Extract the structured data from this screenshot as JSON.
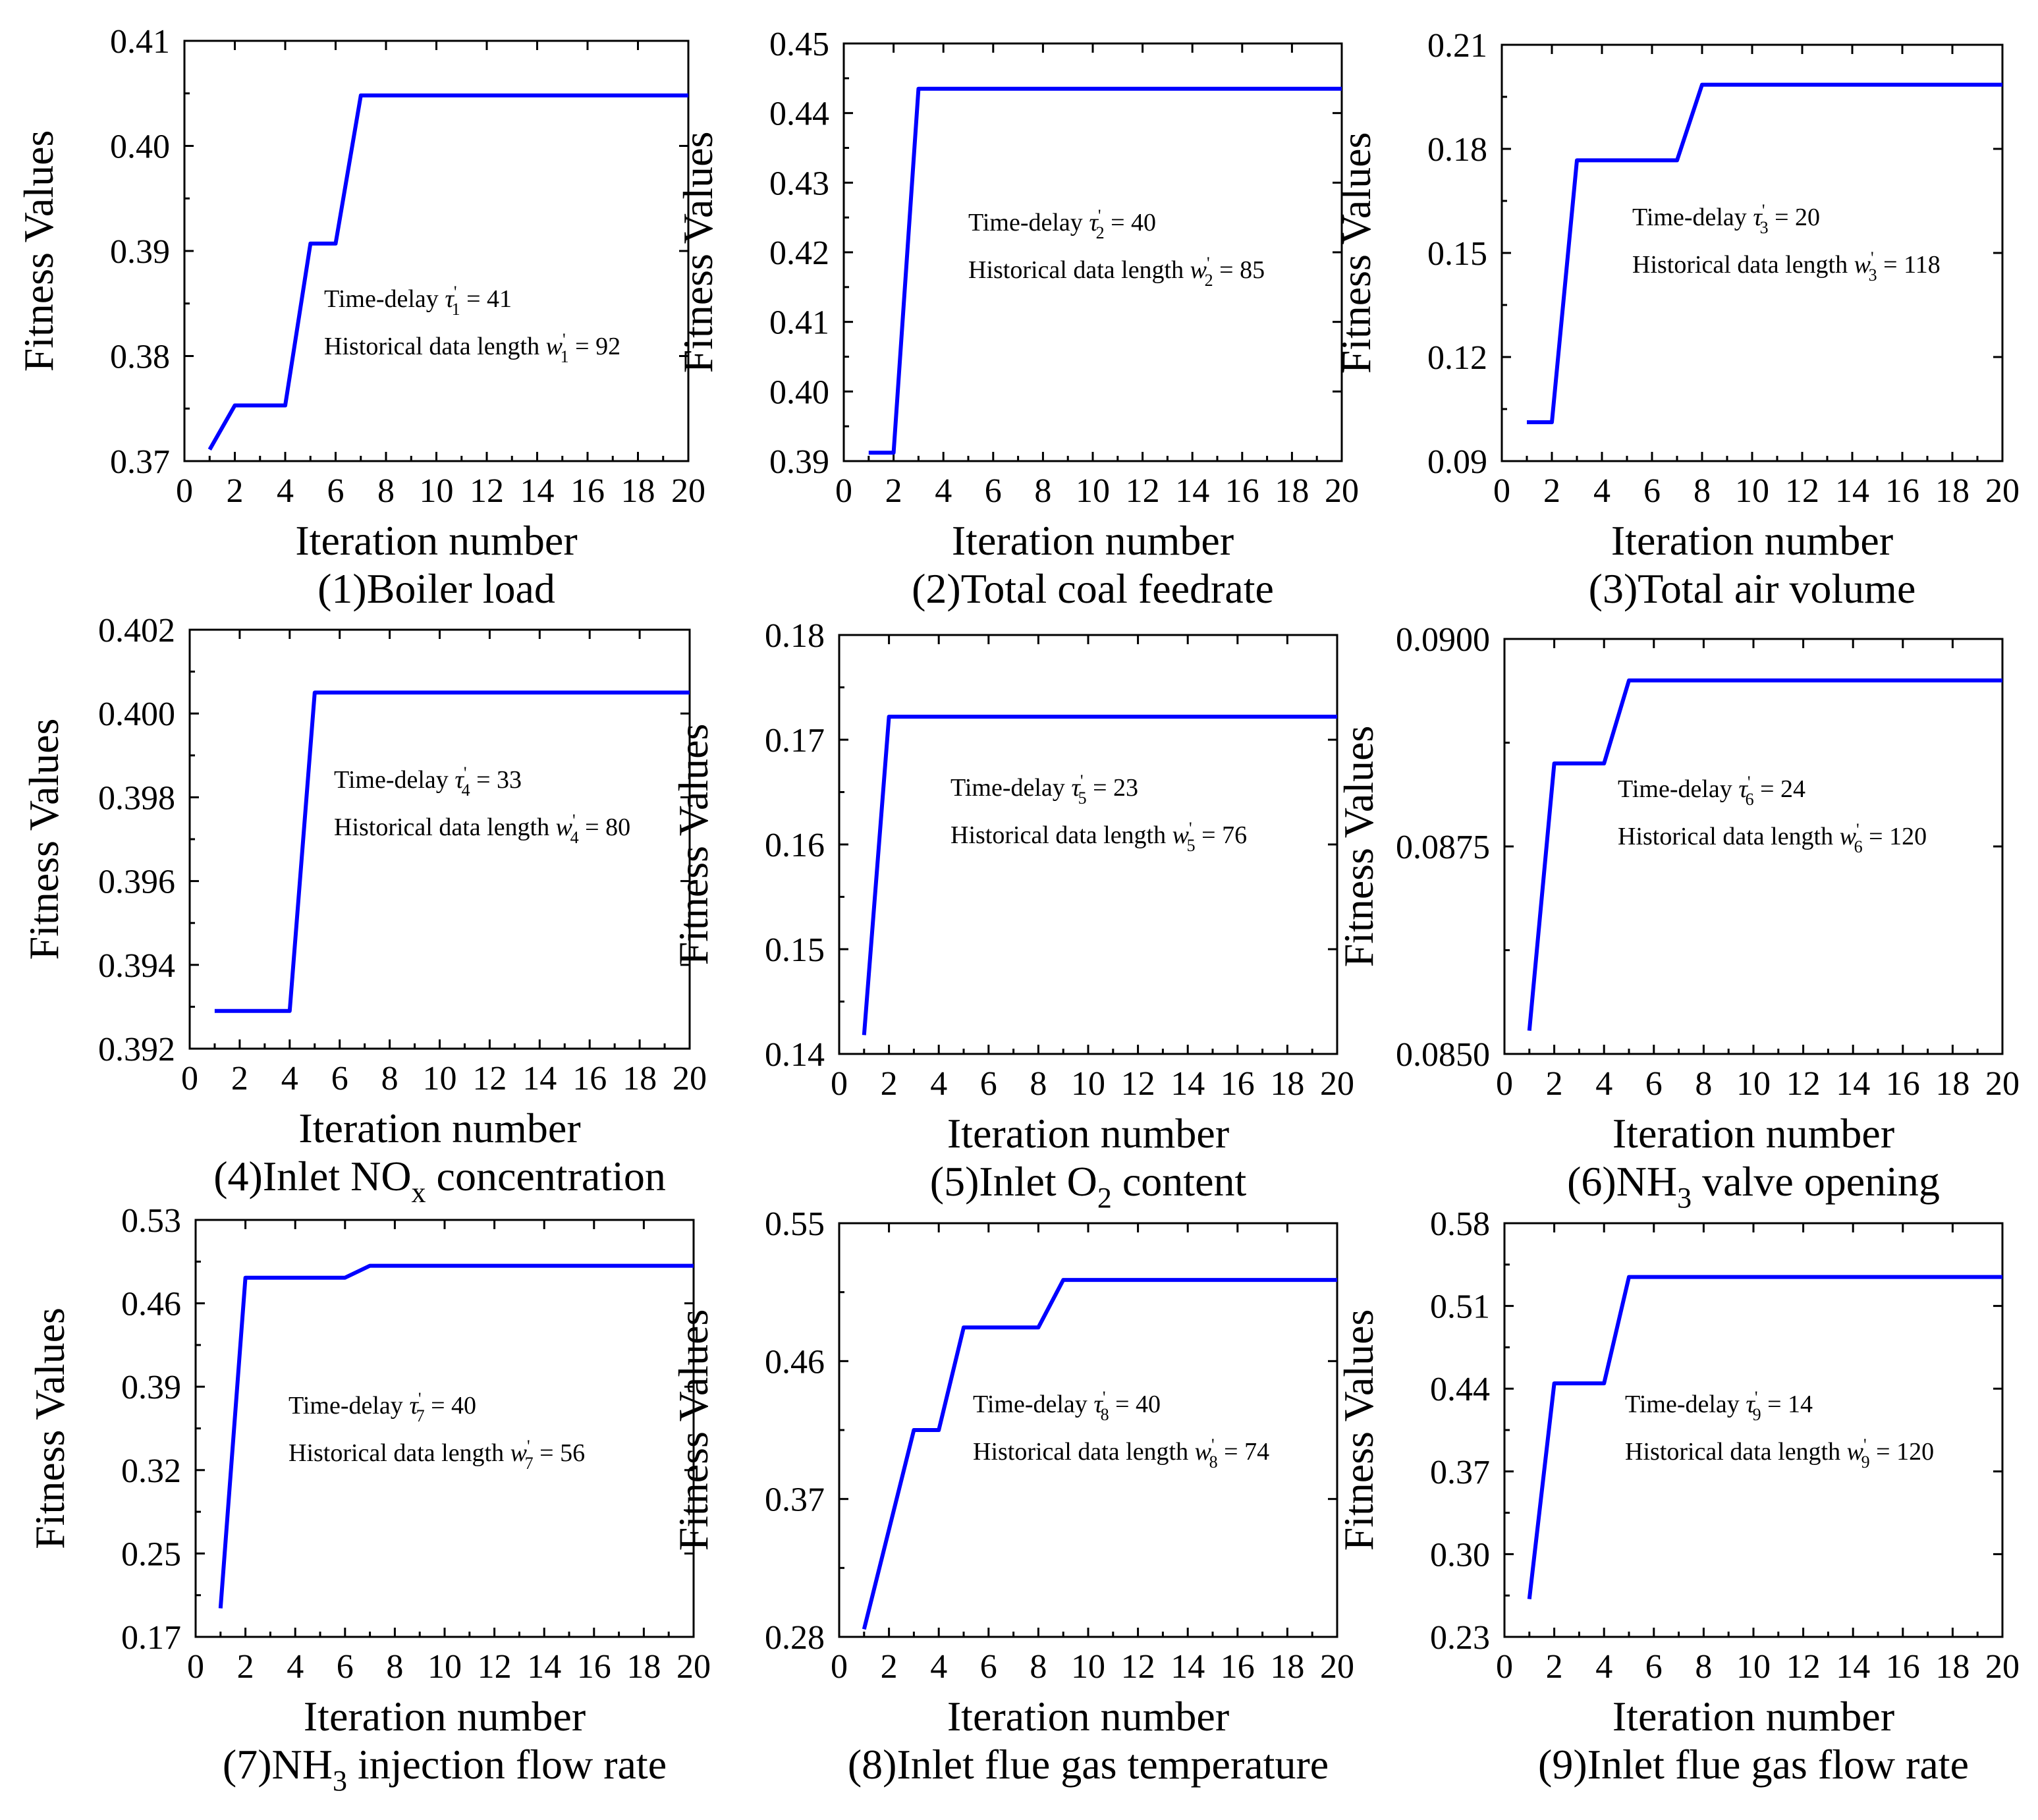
{
  "chart_data": [
    {
      "type": "line",
      "caption": {
        "pre": "(1)Boiler load",
        "sub": "",
        "post": ""
      },
      "xlabel": "Iteration number",
      "ylabel": "Fitness Values",
      "xlim": [
        0,
        20
      ],
      "xticks": [
        "0",
        "2",
        "4",
        "6",
        "8",
        "10",
        "12",
        "14",
        "16",
        "18",
        "20"
      ],
      "ylim": [
        0.37,
        0.41
      ],
      "yticks": [
        "0.37",
        "0.38",
        "0.39",
        "0.40",
        "0.41"
      ],
      "series": [
        {
          "name": "fitness",
          "color": "#0000ff",
          "x": [
            1,
            2,
            3,
            4,
            5,
            6,
            7,
            8,
            20
          ],
          "y": [
            0.3711,
            0.3753,
            0.3753,
            0.3753,
            0.3907,
            0.3907,
            0.4048,
            0.4048,
            0.4048
          ]
        }
      ],
      "annotation": {
        "delay_prefix": "Time-delay ",
        "delay_sym": "τ",
        "delay_sub": "1",
        "delay_val": " = 41",
        "length_prefix": "Historical data length ",
        "length_sym": "w",
        "length_sub": "1",
        "length_val": " = 92"
      }
    },
    {
      "type": "line",
      "caption": {
        "pre": "(2)Total coal feedrate",
        "sub": "",
        "post": ""
      },
      "xlabel": "Iteration number",
      "ylabel": "Fitness Values",
      "xlim": [
        0,
        20
      ],
      "xticks": [
        "0",
        "2",
        "4",
        "6",
        "8",
        "10",
        "12",
        "14",
        "16",
        "18",
        "20"
      ],
      "ylim": [
        0.39,
        0.45
      ],
      "yticks": [
        "0.39",
        "0.40",
        "0.41",
        "0.42",
        "0.43",
        "0.44",
        "0.45"
      ],
      "series": [
        {
          "name": "fitness",
          "color": "#0000ff",
          "x": [
            1,
            2,
            3,
            20
          ],
          "y": [
            0.3912,
            0.3912,
            0.4435,
            0.4435
          ]
        }
      ],
      "annotation": {
        "delay_prefix": "Time-delay ",
        "delay_sym": "τ",
        "delay_sub": "2",
        "delay_val": " = 40",
        "length_prefix": "Historical data length ",
        "length_sym": "w",
        "length_sub": "2",
        "length_val": " = 85"
      }
    },
    {
      "type": "line",
      "caption": {
        "pre": "(3)Total air volume",
        "sub": "",
        "post": ""
      },
      "xlabel": "Iteration number",
      "ylabel": "Fitness Values",
      "xlim": [
        0,
        20
      ],
      "xticks": [
        "0",
        "2",
        "4",
        "6",
        "8",
        "10",
        "12",
        "14",
        "16",
        "18",
        "20"
      ],
      "ylim": [
        0.09,
        0.21
      ],
      "yticks": [
        "0.09",
        "0.12",
        "0.15",
        "0.18",
        "0.21"
      ],
      "series": [
        {
          "name": "fitness",
          "color": "#0000ff",
          "x": [
            1,
            2,
            3,
            7,
            8,
            20
          ],
          "y": [
            0.1012,
            0.1012,
            0.1767,
            0.1767,
            0.1985,
            0.1985
          ]
        }
      ],
      "annotation": {
        "delay_prefix": "Time-delay ",
        "delay_sym": "τ",
        "delay_sub": "3",
        "delay_val": " = 20",
        "length_prefix": "Historical data length ",
        "length_sym": "w",
        "length_sub": "3",
        "length_val": " = 118"
      }
    },
    {
      "type": "line",
      "caption": {
        "pre": "(4)Inlet NO",
        "sub": "x",
        "post": " concentration"
      },
      "xlabel": "Iteration number",
      "ylabel": "Fitness Values",
      "xlim": [
        0,
        20
      ],
      "xticks": [
        "0",
        "2",
        "4",
        "6",
        "8",
        "10",
        "12",
        "14",
        "16",
        "18",
        "20"
      ],
      "ylim": [
        0.392,
        0.402
      ],
      "yticks": [
        "0.392",
        "0.394",
        "0.396",
        "0.398",
        "0.400",
        "0.402"
      ],
      "series": [
        {
          "name": "fitness",
          "color": "#0000ff",
          "x": [
            1,
            4,
            5,
            20
          ],
          "y": [
            0.3929,
            0.3929,
            0.4005,
            0.4005
          ]
        }
      ],
      "annotation": {
        "delay_prefix": "Time-delay ",
        "delay_sym": "τ",
        "delay_sub": "4",
        "delay_val": " = 33",
        "length_prefix": "Historical data length ",
        "length_sym": "w",
        "length_sub": "4",
        "length_val": " = 80"
      }
    },
    {
      "type": "line",
      "caption": {
        "pre": "(5)Inlet O",
        "sub": "2",
        "post": " content"
      },
      "xlabel": "Iteration number",
      "ylabel": "Fitness Values",
      "xlim": [
        0,
        20
      ],
      "xticks": [
        "0",
        "2",
        "4",
        "6",
        "8",
        "10",
        "12",
        "14",
        "16",
        "18",
        "20"
      ],
      "ylim": [
        0.14,
        0.18
      ],
      "yticks": [
        "0.14",
        "0.15",
        "0.16",
        "0.17",
        "0.18"
      ],
      "series": [
        {
          "name": "fitness",
          "color": "#0000ff",
          "x": [
            1,
            2,
            20
          ],
          "y": [
            0.1418,
            0.1722,
            0.1722
          ]
        }
      ],
      "annotation": {
        "delay_prefix": "Time-delay ",
        "delay_sym": "τ",
        "delay_sub": "5",
        "delay_val": " = 23",
        "length_prefix": "Historical data length ",
        "length_sym": "w",
        "length_sub": "5",
        "length_val": " = 76"
      }
    },
    {
      "type": "line",
      "caption": {
        "pre": "(6)NH",
        "sub": "3",
        "post": " valve opening"
      },
      "xlabel": "Iteration number",
      "ylabel": "Fitness Values",
      "xlim": [
        0,
        20
      ],
      "xticks": [
        "0",
        "2",
        "4",
        "6",
        "8",
        "10",
        "12",
        "14",
        "16",
        "18",
        "20"
      ],
      "ylim": [
        0.085,
        0.09
      ],
      "yticks": [
        "0.0850",
        "0.0875",
        "0.0900"
      ],
      "series": [
        {
          "name": "fitness",
          "color": "#0000ff",
          "x": [
            1,
            2,
            4,
            5,
            20
          ],
          "y": [
            0.08528,
            0.0885,
            0.0885,
            0.0895,
            0.0895
          ]
        }
      ],
      "annotation": {
        "delay_prefix": "Time-delay ",
        "delay_sym": "τ",
        "delay_sub": "6",
        "delay_val": " = 24",
        "length_prefix": "Historical data length ",
        "length_sym": "w",
        "length_sub": "6",
        "length_val": " = 120"
      }
    },
    {
      "type": "line",
      "caption": {
        "pre": "(7)NH",
        "sub": "3",
        "post": " injection flow rate"
      },
      "xlabel": "Iteration number",
      "ylabel": "Fitness Values",
      "xlim": [
        0,
        20
      ],
      "xticks": [
        "0",
        "2",
        "4",
        "6",
        "8",
        "10",
        "12",
        "14",
        "16",
        "18",
        "20"
      ],
      "ylim": [
        0.18,
        0.53
      ],
      "yticks": [
        "0.17",
        "0.25",
        "0.32",
        "0.39",
        "0.46",
        "0.53"
      ],
      "series": [
        {
          "name": "fitness",
          "color": "#0000ff",
          "x": [
            1,
            2,
            6,
            7,
            20
          ],
          "y": [
            0.204,
            0.4815,
            0.4815,
            0.4915,
            0.4915
          ]
        }
      ],
      "annotation": {
        "delay_prefix": "Time-delay ",
        "delay_sym": "τ",
        "delay_sub": "7",
        "delay_val": " = 40",
        "length_prefix": "Historical data length ",
        "length_sym": "w",
        "length_sub": "7",
        "length_val": " = 56"
      }
    },
    {
      "type": "line",
      "caption": {
        "pre": "(8)Inlet flue gas temperature",
        "sub": "",
        "post": ""
      },
      "xlabel": "Iteration number",
      "ylabel": "Fitness Values",
      "xlim": [
        0,
        20
      ],
      "xticks": [
        "0",
        "2",
        "4",
        "6",
        "8",
        "10",
        "12",
        "14",
        "16",
        "18",
        "20"
      ],
      "ylim": [
        0.28,
        0.55
      ],
      "yticks": [
        "0.28",
        "0.37",
        "0.46",
        "0.55"
      ],
      "series": [
        {
          "name": "fitness",
          "color": "#0000ff",
          "x": [
            1,
            3,
            4,
            5,
            8,
            9,
            20
          ],
          "y": [
            0.285,
            0.415,
            0.415,
            0.482,
            0.482,
            0.513,
            0.513
          ]
        }
      ],
      "annotation": {
        "delay_prefix": "Time-delay ",
        "delay_sym": "τ",
        "delay_sub": "8",
        "delay_val": " = 40",
        "length_prefix": "Historical data length ",
        "length_sym": "w",
        "length_sub": "8",
        "length_val": " = 74"
      }
    },
    {
      "type": "line",
      "caption": {
        "pre": "(9)Inlet flue gas flow rate",
        "sub": "",
        "post": ""
      },
      "xlabel": "Iteration number",
      "ylabel": "Fitness Values",
      "xlim": [
        0,
        20
      ],
      "xticks": [
        "0",
        "2",
        "4",
        "6",
        "8",
        "10",
        "12",
        "14",
        "16",
        "18",
        "20"
      ],
      "ylim": [
        0.23,
        0.58
      ],
      "yticks": [
        "0.23",
        "0.30",
        "0.37",
        "0.44",
        "0.51",
        "0.58"
      ],
      "series": [
        {
          "name": "fitness",
          "color": "#0000ff",
          "x": [
            1,
            2,
            4,
            5,
            20
          ],
          "y": [
            0.262,
            0.4445,
            0.4445,
            0.5345,
            0.5345
          ]
        }
      ],
      "annotation": {
        "delay_prefix": "Time-delay ",
        "delay_sym": "τ",
        "delay_sub": "9",
        "delay_val": " = 14",
        "length_prefix": "Historical data length ",
        "length_sym": "w",
        "length_sub": "9",
        "length_val": " = 120"
      }
    }
  ]
}
